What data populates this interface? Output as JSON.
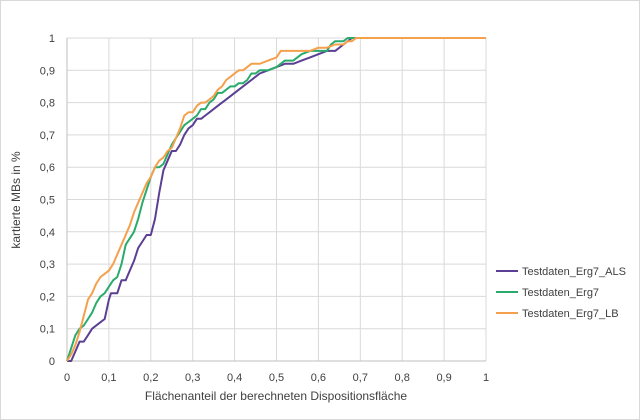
{
  "chart_data": {
    "type": "line",
    "title": "",
    "xlabel": "Flächenanteil der berechneten Dispositionsfläche",
    "ylabel": "kartierte MBs in %",
    "xlim": [
      0,
      1
    ],
    "ylim": [
      0,
      1
    ],
    "x_ticks": [
      "0",
      "0,1",
      "0,2",
      "0,3",
      "0,4",
      "0,5",
      "0,6",
      "0,7",
      "0,8",
      "0,9",
      "1"
    ],
    "y_ticks": [
      "0",
      "0,1",
      "0,2",
      "0,3",
      "0,4",
      "0,5",
      "0,6",
      "0,7",
      "0,8",
      "0,9",
      "1"
    ],
    "grid": true,
    "legend_position": "right",
    "series": [
      {
        "name": "Testdaten_Erg7_ALS",
        "color": "#5b3f93",
        "points": [
          [
            0,
            0
          ],
          [
            0.01,
            0
          ],
          [
            0.02,
            0.03
          ],
          [
            0.03,
            0.06
          ],
          [
            0.04,
            0.06
          ],
          [
            0.05,
            0.08
          ],
          [
            0.06,
            0.1
          ],
          [
            0.08,
            0.12
          ],
          [
            0.09,
            0.13
          ],
          [
            0.1,
            0.19
          ],
          [
            0.105,
            0.21
          ],
          [
            0.12,
            0.21
          ],
          [
            0.13,
            0.25
          ],
          [
            0.14,
            0.25
          ],
          [
            0.15,
            0.28
          ],
          [
            0.16,
            0.31
          ],
          [
            0.17,
            0.35
          ],
          [
            0.18,
            0.37
          ],
          [
            0.19,
            0.39
          ],
          [
            0.2,
            0.39
          ],
          [
            0.21,
            0.44
          ],
          [
            0.22,
            0.52
          ],
          [
            0.23,
            0.59
          ],
          [
            0.24,
            0.62
          ],
          [
            0.25,
            0.65
          ],
          [
            0.26,
            0.65
          ],
          [
            0.27,
            0.67
          ],
          [
            0.28,
            0.7
          ],
          [
            0.29,
            0.72
          ],
          [
            0.3,
            0.73
          ],
          [
            0.31,
            0.75
          ],
          [
            0.32,
            0.75
          ],
          [
            0.33,
            0.76
          ],
          [
            0.34,
            0.77
          ],
          [
            0.36,
            0.79
          ],
          [
            0.38,
            0.81
          ],
          [
            0.4,
            0.83
          ],
          [
            0.42,
            0.85
          ],
          [
            0.44,
            0.87
          ],
          [
            0.46,
            0.89
          ],
          [
            0.48,
            0.9
          ],
          [
            0.5,
            0.91
          ],
          [
            0.52,
            0.92
          ],
          [
            0.54,
            0.92
          ],
          [
            0.56,
            0.93
          ],
          [
            0.58,
            0.94
          ],
          [
            0.6,
            0.95
          ],
          [
            0.62,
            0.96
          ],
          [
            0.64,
            0.96
          ],
          [
            0.66,
            0.98
          ],
          [
            0.68,
            1.0
          ],
          [
            0.7,
            1.0
          ],
          [
            1.0,
            1.0
          ]
        ]
      },
      {
        "name": "Testdaten_Erg7",
        "color": "#2bab6b",
        "points": [
          [
            0,
            0
          ],
          [
            0.01,
            0.04
          ],
          [
            0.02,
            0.08
          ],
          [
            0.03,
            0.1
          ],
          [
            0.04,
            0.11
          ],
          [
            0.05,
            0.13
          ],
          [
            0.06,
            0.15
          ],
          [
            0.07,
            0.18
          ],
          [
            0.08,
            0.2
          ],
          [
            0.09,
            0.21
          ],
          [
            0.1,
            0.23
          ],
          [
            0.11,
            0.25
          ],
          [
            0.12,
            0.26
          ],
          [
            0.13,
            0.3
          ],
          [
            0.14,
            0.36
          ],
          [
            0.15,
            0.38
          ],
          [
            0.16,
            0.4
          ],
          [
            0.17,
            0.44
          ],
          [
            0.18,
            0.49
          ],
          [
            0.19,
            0.53
          ],
          [
            0.2,
            0.57
          ],
          [
            0.21,
            0.6
          ],
          [
            0.22,
            0.6
          ],
          [
            0.23,
            0.61
          ],
          [
            0.24,
            0.64
          ],
          [
            0.25,
            0.67
          ],
          [
            0.26,
            0.69
          ],
          [
            0.27,
            0.71
          ],
          [
            0.28,
            0.73
          ],
          [
            0.29,
            0.74
          ],
          [
            0.3,
            0.75
          ],
          [
            0.31,
            0.76
          ],
          [
            0.32,
            0.78
          ],
          [
            0.33,
            0.78
          ],
          [
            0.34,
            0.8
          ],
          [
            0.35,
            0.81
          ],
          [
            0.36,
            0.83
          ],
          [
            0.37,
            0.83
          ],
          [
            0.38,
            0.84
          ],
          [
            0.39,
            0.85
          ],
          [
            0.4,
            0.85
          ],
          [
            0.41,
            0.86
          ],
          [
            0.42,
            0.86
          ],
          [
            0.43,
            0.87
          ],
          [
            0.44,
            0.89
          ],
          [
            0.45,
            0.89
          ],
          [
            0.46,
            0.9
          ],
          [
            0.48,
            0.9
          ],
          [
            0.5,
            0.91
          ],
          [
            0.52,
            0.93
          ],
          [
            0.54,
            0.93
          ],
          [
            0.56,
            0.95
          ],
          [
            0.58,
            0.96
          ],
          [
            0.6,
            0.96
          ],
          [
            0.62,
            0.96
          ],
          [
            0.63,
            0.98
          ],
          [
            0.64,
            0.99
          ],
          [
            0.66,
            0.99
          ],
          [
            0.67,
            1.0
          ],
          [
            1.0,
            1.0
          ]
        ]
      },
      {
        "name": "Testdaten_Erg7_LB",
        "color": "#f5a04c",
        "points": [
          [
            0,
            0
          ],
          [
            0.01,
            0.02
          ],
          [
            0.02,
            0.05
          ],
          [
            0.03,
            0.09
          ],
          [
            0.04,
            0.14
          ],
          [
            0.05,
            0.19
          ],
          [
            0.06,
            0.21
          ],
          [
            0.07,
            0.24
          ],
          [
            0.08,
            0.26
          ],
          [
            0.09,
            0.27
          ],
          [
            0.1,
            0.28
          ],
          [
            0.11,
            0.3
          ],
          [
            0.12,
            0.33
          ],
          [
            0.13,
            0.36
          ],
          [
            0.14,
            0.39
          ],
          [
            0.15,
            0.42
          ],
          [
            0.16,
            0.46
          ],
          [
            0.17,
            0.49
          ],
          [
            0.18,
            0.52
          ],
          [
            0.19,
            0.55
          ],
          [
            0.2,
            0.57
          ],
          [
            0.21,
            0.6
          ],
          [
            0.22,
            0.62
          ],
          [
            0.23,
            0.63
          ],
          [
            0.24,
            0.65
          ],
          [
            0.25,
            0.66
          ],
          [
            0.26,
            0.69
          ],
          [
            0.27,
            0.72
          ],
          [
            0.28,
            0.76
          ],
          [
            0.29,
            0.77
          ],
          [
            0.3,
            0.77
          ],
          [
            0.31,
            0.79
          ],
          [
            0.32,
            0.8
          ],
          [
            0.33,
            0.8
          ],
          [
            0.34,
            0.81
          ],
          [
            0.35,
            0.82
          ],
          [
            0.36,
            0.84
          ],
          [
            0.37,
            0.85
          ],
          [
            0.38,
            0.87
          ],
          [
            0.39,
            0.88
          ],
          [
            0.4,
            0.89
          ],
          [
            0.41,
            0.9
          ],
          [
            0.42,
            0.9
          ],
          [
            0.43,
            0.91
          ],
          [
            0.44,
            0.92
          ],
          [
            0.46,
            0.92
          ],
          [
            0.48,
            0.93
          ],
          [
            0.5,
            0.94
          ],
          [
            0.51,
            0.96
          ],
          [
            0.54,
            0.96
          ],
          [
            0.56,
            0.96
          ],
          [
            0.58,
            0.96
          ],
          [
            0.6,
            0.97
          ],
          [
            0.62,
            0.97
          ],
          [
            0.64,
            0.98
          ],
          [
            0.66,
            0.98
          ],
          [
            0.67,
            0.99
          ],
          [
            0.68,
            0.99
          ],
          [
            0.69,
            1.0
          ],
          [
            1.0,
            1.0
          ]
        ]
      }
    ]
  }
}
